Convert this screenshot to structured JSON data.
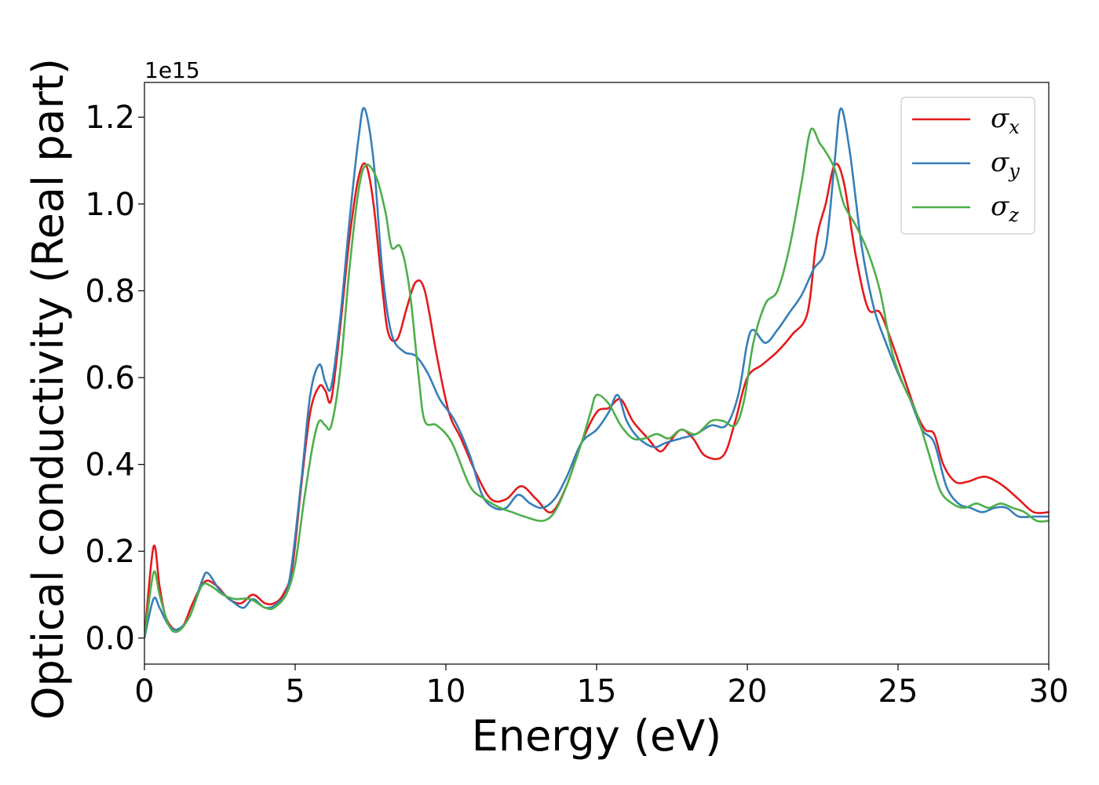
{
  "chart_data": {
    "type": "line",
    "title": "",
    "xlabel": "Energy (eV)",
    "ylabel": "Optical conductivity (Real part)",
    "y_offset_label": "1e15",
    "xlim": [
      0,
      30
    ],
    "ylim": [
      -0.06,
      1.28
    ],
    "y_scale_factor": 1000000000000000.0,
    "xticks": [
      0,
      5,
      10,
      15,
      20,
      25,
      30
    ],
    "xtick_labels": [
      "0",
      "5",
      "10",
      "15",
      "20",
      "25",
      "30"
    ],
    "yticks": [
      0.0,
      0.2,
      0.4,
      0.6,
      0.8,
      1.0,
      1.2
    ],
    "ytick_labels": [
      "0.0",
      "0.2",
      "0.4",
      "0.6",
      "0.8",
      "1.0",
      "1.2"
    ],
    "grid": false,
    "legend_position": "top-right",
    "series": [
      {
        "name": "σx",
        "label_base": "σ",
        "label_sub": "x",
        "color": "#e41a1c",
        "points": [
          [
            0,
            0
          ],
          [
            0.3,
            0.21
          ],
          [
            0.5,
            0.12
          ],
          [
            0.7,
            0.05
          ],
          [
            1.0,
            0.02
          ],
          [
            1.3,
            0.03
          ],
          [
            1.6,
            0.08
          ],
          [
            2.0,
            0.13
          ],
          [
            2.4,
            0.12
          ],
          [
            2.8,
            0.09
          ],
          [
            3.2,
            0.08
          ],
          [
            3.6,
            0.1
          ],
          [
            4.0,
            0.08
          ],
          [
            4.3,
            0.08
          ],
          [
            4.6,
            0.1
          ],
          [
            4.9,
            0.16
          ],
          [
            5.2,
            0.35
          ],
          [
            5.5,
            0.52
          ],
          [
            5.8,
            0.58
          ],
          [
            6.0,
            0.57
          ],
          [
            6.2,
            0.55
          ],
          [
            6.5,
            0.72
          ],
          [
            6.8,
            0.92
          ],
          [
            7.1,
            1.06
          ],
          [
            7.35,
            1.09
          ],
          [
            7.6,
            1.0
          ],
          [
            7.9,
            0.8
          ],
          [
            8.1,
            0.7
          ],
          [
            8.4,
            0.69
          ],
          [
            8.7,
            0.76
          ],
          [
            9.0,
            0.82
          ],
          [
            9.3,
            0.8
          ],
          [
            9.7,
            0.65
          ],
          [
            10.1,
            0.52
          ],
          [
            10.5,
            0.46
          ],
          [
            11.0,
            0.38
          ],
          [
            11.5,
            0.32
          ],
          [
            12.0,
            0.32
          ],
          [
            12.5,
            0.35
          ],
          [
            13.0,
            0.32
          ],
          [
            13.5,
            0.29
          ],
          [
            14.0,
            0.35
          ],
          [
            14.5,
            0.45
          ],
          [
            15.0,
            0.52
          ],
          [
            15.4,
            0.53
          ],
          [
            15.8,
            0.55
          ],
          [
            16.2,
            0.5
          ],
          [
            16.7,
            0.46
          ],
          [
            17.1,
            0.43
          ],
          [
            17.4,
            0.45
          ],
          [
            17.8,
            0.48
          ],
          [
            18.2,
            0.46
          ],
          [
            18.6,
            0.42
          ],
          [
            19.2,
            0.42
          ],
          [
            19.6,
            0.5
          ],
          [
            20.0,
            0.6
          ],
          [
            20.5,
            0.63
          ],
          [
            21.0,
            0.66
          ],
          [
            21.5,
            0.7
          ],
          [
            22.0,
            0.75
          ],
          [
            22.3,
            0.92
          ],
          [
            22.6,
            1.0
          ],
          [
            22.9,
            1.09
          ],
          [
            23.2,
            1.05
          ],
          [
            23.6,
            0.88
          ],
          [
            24.0,
            0.76
          ],
          [
            24.4,
            0.75
          ],
          [
            24.8,
            0.68
          ],
          [
            25.2,
            0.6
          ],
          [
            25.6,
            0.52
          ],
          [
            25.9,
            0.48
          ],
          [
            26.2,
            0.47
          ],
          [
            26.5,
            0.4
          ],
          [
            26.9,
            0.36
          ],
          [
            27.3,
            0.36
          ],
          [
            27.7,
            0.37
          ],
          [
            28.0,
            0.37
          ],
          [
            28.5,
            0.35
          ],
          [
            29.0,
            0.32
          ],
          [
            29.5,
            0.29
          ],
          [
            30.0,
            0.29
          ]
        ]
      },
      {
        "name": "σy",
        "label_base": "σ",
        "label_sub": "y",
        "color": "#377eb8",
        "points": [
          [
            0,
            0
          ],
          [
            0.3,
            0.09
          ],
          [
            0.5,
            0.07
          ],
          [
            0.8,
            0.03
          ],
          [
            1.1,
            0.02
          ],
          [
            1.5,
            0.05
          ],
          [
            1.9,
            0.13
          ],
          [
            2.1,
            0.15
          ],
          [
            2.5,
            0.11
          ],
          [
            3.0,
            0.08
          ],
          [
            3.3,
            0.07
          ],
          [
            3.6,
            0.09
          ],
          [
            4.0,
            0.07
          ],
          [
            4.4,
            0.08
          ],
          [
            4.8,
            0.13
          ],
          [
            5.2,
            0.36
          ],
          [
            5.5,
            0.56
          ],
          [
            5.8,
            0.63
          ],
          [
            6.0,
            0.59
          ],
          [
            6.2,
            0.58
          ],
          [
            6.5,
            0.74
          ],
          [
            6.8,
            0.96
          ],
          [
            7.1,
            1.15
          ],
          [
            7.3,
            1.22
          ],
          [
            7.6,
            1.1
          ],
          [
            7.9,
            0.84
          ],
          [
            8.2,
            0.7
          ],
          [
            8.6,
            0.66
          ],
          [
            9.0,
            0.65
          ],
          [
            9.4,
            0.61
          ],
          [
            9.8,
            0.55
          ],
          [
            10.3,
            0.5
          ],
          [
            10.8,
            0.42
          ],
          [
            11.2,
            0.33
          ],
          [
            11.6,
            0.3
          ],
          [
            12.0,
            0.3
          ],
          [
            12.4,
            0.33
          ],
          [
            12.8,
            0.31
          ],
          [
            13.2,
            0.3
          ],
          [
            13.6,
            0.32
          ],
          [
            14.0,
            0.37
          ],
          [
            14.5,
            0.45
          ],
          [
            15.0,
            0.48
          ],
          [
            15.4,
            0.52
          ],
          [
            15.7,
            0.56
          ],
          [
            16.0,
            0.5
          ],
          [
            16.4,
            0.46
          ],
          [
            16.9,
            0.44
          ],
          [
            17.3,
            0.45
          ],
          [
            17.8,
            0.46
          ],
          [
            18.3,
            0.47
          ],
          [
            18.8,
            0.49
          ],
          [
            19.3,
            0.49
          ],
          [
            19.7,
            0.56
          ],
          [
            20.0,
            0.68
          ],
          [
            20.2,
            0.71
          ],
          [
            20.6,
            0.68
          ],
          [
            21.0,
            0.71
          ],
          [
            21.4,
            0.75
          ],
          [
            21.8,
            0.79
          ],
          [
            22.2,
            0.85
          ],
          [
            22.6,
            0.9
          ],
          [
            22.9,
            1.1
          ],
          [
            23.1,
            1.22
          ],
          [
            23.4,
            1.12
          ],
          [
            23.8,
            0.9
          ],
          [
            24.2,
            0.76
          ],
          [
            24.6,
            0.68
          ],
          [
            25.0,
            0.61
          ],
          [
            25.4,
            0.55
          ],
          [
            25.8,
            0.48
          ],
          [
            26.2,
            0.45
          ],
          [
            26.6,
            0.35
          ],
          [
            27.0,
            0.31
          ],
          [
            27.4,
            0.3
          ],
          [
            27.8,
            0.29
          ],
          [
            28.2,
            0.3
          ],
          [
            28.6,
            0.3
          ],
          [
            29.0,
            0.28
          ],
          [
            29.5,
            0.28
          ],
          [
            30.0,
            0.28
          ]
        ]
      },
      {
        "name": "σz",
        "label_base": "σ",
        "label_sub": "z",
        "color": "#4daf4a",
        "points": [
          [
            0,
            0
          ],
          [
            0.3,
            0.15
          ],
          [
            0.5,
            0.1
          ],
          [
            0.8,
            0.03
          ],
          [
            1.1,
            0.015
          ],
          [
            1.5,
            0.05
          ],
          [
            1.9,
            0.12
          ],
          [
            2.2,
            0.12
          ],
          [
            2.6,
            0.1
          ],
          [
            3.0,
            0.09
          ],
          [
            3.5,
            0.09
          ],
          [
            4.0,
            0.07
          ],
          [
            4.3,
            0.07
          ],
          [
            4.7,
            0.1
          ],
          [
            5.0,
            0.17
          ],
          [
            5.3,
            0.32
          ],
          [
            5.6,
            0.45
          ],
          [
            5.8,
            0.5
          ],
          [
            6.0,
            0.49
          ],
          [
            6.2,
            0.49
          ],
          [
            6.5,
            0.62
          ],
          [
            6.8,
            0.85
          ],
          [
            7.1,
            1.03
          ],
          [
            7.35,
            1.09
          ],
          [
            7.7,
            1.06
          ],
          [
            8.0,
            0.98
          ],
          [
            8.2,
            0.9
          ],
          [
            8.5,
            0.9
          ],
          [
            8.8,
            0.8
          ],
          [
            9.1,
            0.6
          ],
          [
            9.3,
            0.5
          ],
          [
            9.7,
            0.49
          ],
          [
            10.2,
            0.45
          ],
          [
            10.8,
            0.35
          ],
          [
            11.3,
            0.32
          ],
          [
            11.8,
            0.3
          ],
          [
            12.2,
            0.29
          ],
          [
            12.6,
            0.28
          ],
          [
            13.2,
            0.27
          ],
          [
            13.6,
            0.29
          ],
          [
            14.0,
            0.35
          ],
          [
            14.5,
            0.45
          ],
          [
            14.8,
            0.52
          ],
          [
            15.0,
            0.56
          ],
          [
            15.4,
            0.54
          ],
          [
            15.8,
            0.49
          ],
          [
            16.2,
            0.46
          ],
          [
            16.6,
            0.46
          ],
          [
            17.0,
            0.47
          ],
          [
            17.4,
            0.46
          ],
          [
            17.8,
            0.48
          ],
          [
            18.3,
            0.47
          ],
          [
            18.8,
            0.5
          ],
          [
            19.2,
            0.5
          ],
          [
            19.6,
            0.49
          ],
          [
            19.9,
            0.55
          ],
          [
            20.2,
            0.68
          ],
          [
            20.6,
            0.77
          ],
          [
            21.0,
            0.8
          ],
          [
            21.4,
            0.9
          ],
          [
            21.8,
            1.05
          ],
          [
            22.1,
            1.17
          ],
          [
            22.4,
            1.14
          ],
          [
            22.6,
            1.12
          ],
          [
            22.9,
            1.08
          ],
          [
            23.2,
            1.0
          ],
          [
            23.6,
            0.95
          ],
          [
            24.0,
            0.89
          ],
          [
            24.4,
            0.8
          ],
          [
            24.8,
            0.66
          ],
          [
            25.2,
            0.58
          ],
          [
            25.6,
            0.52
          ],
          [
            26.0,
            0.43
          ],
          [
            26.4,
            0.34
          ],
          [
            26.8,
            0.31
          ],
          [
            27.2,
            0.3
          ],
          [
            27.6,
            0.31
          ],
          [
            28.0,
            0.3
          ],
          [
            28.4,
            0.31
          ],
          [
            28.8,
            0.3
          ],
          [
            29.2,
            0.29
          ],
          [
            29.6,
            0.27
          ],
          [
            30.0,
            0.27
          ]
        ]
      }
    ]
  }
}
